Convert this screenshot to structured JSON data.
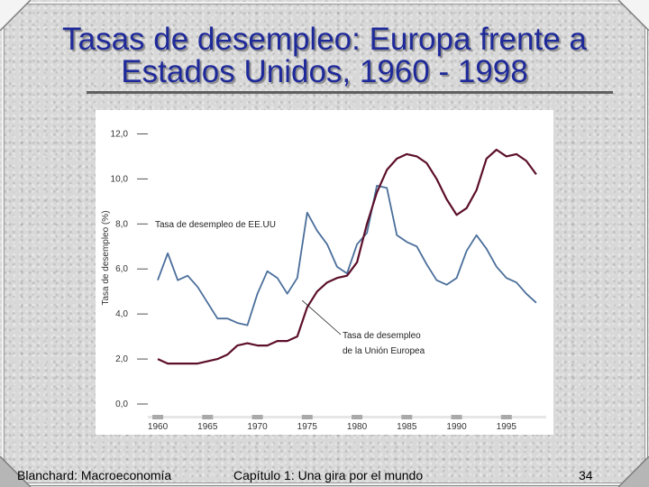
{
  "slide": {
    "title_line1": "Tasas de desempleo: Europa frente a",
    "title_line2": "Estados Unidos, 1960 - 1998",
    "footer_left": "Blanchard: Macroeconomía",
    "footer_center": "Capítulo 1: Una gira por el mundo",
    "page_number": "34"
  },
  "chart_data": {
    "type": "line",
    "ylabel": "Tasa de desempleo (%)",
    "ylim": [
      0,
      12.5
    ],
    "yticks": [
      0,
      2,
      4,
      6,
      8,
      10,
      12
    ],
    "ytick_labels": [
      "0,0",
      "2,0",
      "4,0",
      "6,0",
      "8,0",
      "10,0",
      "12,0"
    ],
    "xlim": [
      1959,
      1999
    ],
    "xticks": [
      1960,
      1965,
      1970,
      1975,
      1980,
      1985,
      1990,
      1995
    ],
    "xtick_labels": [
      "1960",
      "1965",
      "1970",
      "1975",
      "1980",
      "1985",
      "1990",
      "1995"
    ],
    "series": [
      {
        "name": "Tasa de desempleo de EE.UU",
        "color": "#4a6e9a",
        "x": [
          1960,
          1961,
          1962,
          1963,
          1964,
          1965,
          1966,
          1967,
          1968,
          1969,
          1970,
          1971,
          1972,
          1973,
          1974,
          1975,
          1976,
          1977,
          1978,
          1979,
          1980,
          1981,
          1982,
          1983,
          1984,
          1985,
          1986,
          1987,
          1988,
          1989,
          1990,
          1991,
          1992,
          1993,
          1994,
          1995,
          1996,
          1997,
          1998
        ],
        "y": [
          5.5,
          6.7,
          5.5,
          5.7,
          5.2,
          4.5,
          3.8,
          3.8,
          3.6,
          3.5,
          4.9,
          5.9,
          5.6,
          4.9,
          5.6,
          8.5,
          7.7,
          7.1,
          6.1,
          5.8,
          7.1,
          7.6,
          9.7,
          9.6,
          7.5,
          7.2,
          7.0,
          6.2,
          5.5,
          5.3,
          5.6,
          6.8,
          7.5,
          6.9,
          6.1,
          5.6,
          5.4,
          4.9,
          4.5
        ]
      },
      {
        "name": "Tasa de desempleo de la Unión Europea",
        "color": "#5c0f2a",
        "x": [
          1960,
          1961,
          1962,
          1963,
          1964,
          1965,
          1966,
          1967,
          1968,
          1969,
          1970,
          1971,
          1972,
          1973,
          1974,
          1975,
          1976,
          1977,
          1978,
          1979,
          1980,
          1981,
          1982,
          1983,
          1984,
          1985,
          1986,
          1987,
          1988,
          1989,
          1990,
          1991,
          1992,
          1993,
          1994,
          1995,
          1996,
          1997,
          1998
        ],
        "y": [
          2.0,
          1.8,
          1.8,
          1.8,
          1.8,
          1.9,
          2.0,
          2.2,
          2.6,
          2.7,
          2.6,
          2.6,
          2.8,
          2.8,
          3.0,
          4.3,
          5.0,
          5.4,
          5.6,
          5.7,
          6.3,
          8.0,
          9.4,
          10.4,
          10.9,
          11.1,
          11.0,
          10.7,
          10.0,
          9.1,
          8.4,
          8.7,
          9.5,
          10.9,
          11.3,
          11.0,
          11.1,
          10.8,
          10.2
        ]
      }
    ],
    "annotations": [
      {
        "text": "Tasa de desempleo de EE.UU",
        "target": 0
      },
      {
        "line1": "Tasa de desempleo",
        "line2": "de la Unión Europea",
        "target": 1
      }
    ],
    "shaded_years": [
      1960,
      1965,
      1970,
      1975,
      1980,
      1985,
      1990,
      1995
    ]
  }
}
